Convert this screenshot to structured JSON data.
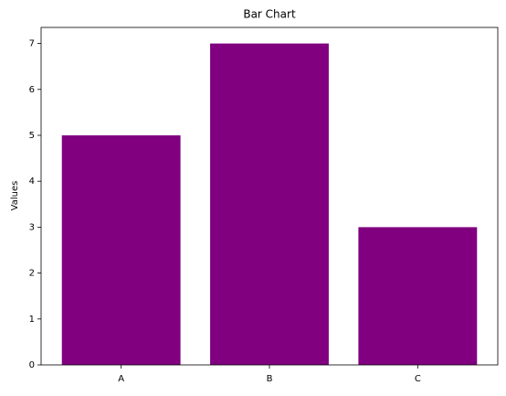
{
  "chart_data": {
    "type": "bar",
    "title": "Bar Chart",
    "ylabel": "Values",
    "categories": [
      "A",
      "B",
      "C"
    ],
    "values": [
      5,
      7,
      3
    ],
    "color": "#800080",
    "ylim": [
      0,
      7.35
    ],
    "yticks": [
      0,
      1,
      2,
      3,
      4,
      5,
      6,
      7
    ],
    "grid": false
  }
}
